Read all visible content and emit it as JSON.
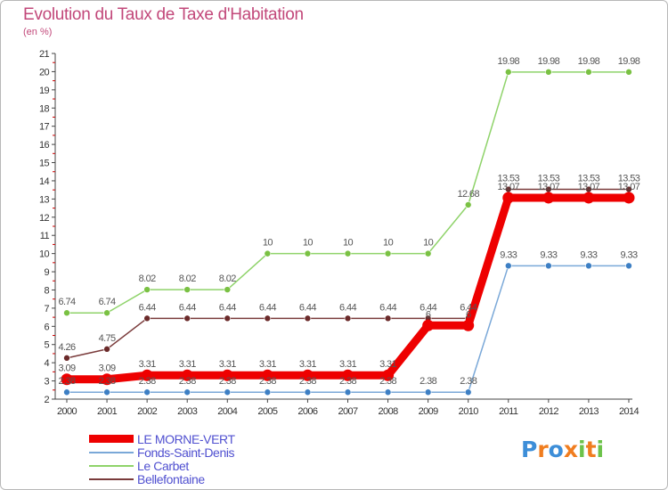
{
  "header": {
    "title": "Evolution du Taux de Taxe d'Habitation",
    "unit": "(en %)"
  },
  "logo": {
    "text": "Proxiti",
    "letters": [
      "P",
      "r",
      "o",
      "x",
      "i",
      "t",
      "i"
    ],
    "colors": [
      "#3d8ed8",
      "#f07d1f",
      "#3d8ed8",
      "#f07d1f",
      "#6cc24a",
      "#f07d1f",
      "#6cc24a"
    ]
  },
  "chart_data": {
    "type": "line",
    "title": "Evolution du Taux de Taxe d'Habitation",
    "ylabel": "(en %)",
    "xlabel": "",
    "ylim": [
      2,
      21
    ],
    "grid": false,
    "legend": "bottom-left",
    "x": [
      "2000",
      "2001",
      "2002",
      "2003",
      "2004",
      "2005",
      "2006",
      "2007",
      "2008",
      "2009",
      "2010",
      "2011",
      "2012",
      "2013",
      "2014"
    ],
    "yticks": [
      "2",
      "3",
      "4",
      "5",
      "6",
      "7",
      "8",
      "9",
      "10",
      "11",
      "12",
      "13",
      "14",
      "15",
      "16",
      "17",
      "18",
      "19",
      "20",
      "21"
    ],
    "series": [
      {
        "name": "Le Carbet",
        "color": "#8fd36a",
        "marker": "#7ac143",
        "width": 1.5,
        "r": 3.5,
        "values": [
          6.74,
          6.74,
          8.02,
          8.02,
          8.02,
          10,
          10,
          10,
          10,
          10,
          12.68,
          19.98,
          19.98,
          19.98,
          19.98
        ],
        "labels": [
          "6.74",
          "6.74",
          "8.02",
          "8.02",
          "8.02",
          "10",
          "10",
          "10",
          "10",
          "10",
          "12.68",
          "19.98",
          "19.98",
          "19.98",
          "19.98"
        ]
      },
      {
        "name": "Bellefontaine",
        "color": "#7a3b3b",
        "marker": "#6b2a2a",
        "width": 1.5,
        "r": 3.5,
        "values": [
          4.26,
          4.75,
          6.44,
          6.44,
          6.44,
          6.44,
          6.44,
          6.44,
          6.44,
          6.44,
          6.44,
          13.53,
          13.53,
          13.53,
          13.53
        ],
        "labels": [
          "4.26",
          "4.75",
          "6.44",
          "6.44",
          "6.44",
          "6.44",
          "6.44",
          "6.44",
          "6.44",
          "6.44",
          "6.44",
          "13.53",
          "13.53",
          "13.53",
          "13.53"
        ]
      },
      {
        "name": "Fonds-Saint-Denis",
        "color": "#7aa8d8",
        "marker": "#3d7fc4",
        "width": 1.5,
        "r": 3.5,
        "values": [
          2.38,
          2.38,
          2.38,
          2.38,
          2.38,
          2.38,
          2.38,
          2.38,
          2.38,
          2.38,
          2.38,
          9.33,
          9.33,
          9.33,
          9.33
        ],
        "labels": [
          "2.38",
          "2.38",
          "2.38",
          "2.38",
          "2.38",
          "2.38",
          "2.38",
          "2.38",
          "2.38",
          "2.38",
          "2.38",
          "9.33",
          "9.33",
          "9.33",
          "9.33"
        ]
      },
      {
        "name": "LE MORNE-VERT",
        "color": "#ee0000",
        "marker": "#ee0000",
        "width": 9,
        "r": 6.5,
        "values": [
          3.09,
          3.09,
          3.31,
          3.31,
          3.31,
          3.31,
          3.31,
          3.31,
          3.31,
          6.05,
          6.05,
          13.07,
          13.07,
          13.07,
          13.07
        ],
        "labels": [
          "3.09",
          "3.09",
          "3.31",
          "3.31",
          "3.31",
          "3.31",
          "3.31",
          "3.31",
          "3.31",
          "6",
          "6",
          "13.07",
          "13.07",
          "13.07",
          "13.07"
        ]
      }
    ],
    "legend_order": [
      "LE MORNE-VERT",
      "Fonds-Saint-Denis",
      "Le Carbet",
      "Bellefontaine"
    ]
  }
}
